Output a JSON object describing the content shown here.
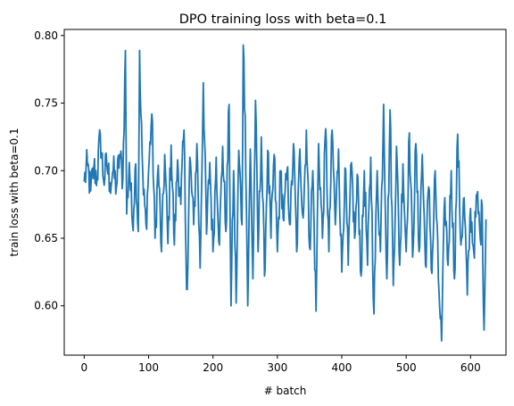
{
  "chart_data": {
    "type": "line",
    "title": "DPO training loss with beta=0.1",
    "xlabel": "# batch",
    "ylabel": "train loss with beta=0.1",
    "xlim": [
      -31,
      655
    ],
    "ylim": [
      0.5635,
      0.8045
    ],
    "xticks": [
      0,
      100,
      200,
      300,
      400,
      500,
      600
    ],
    "xtick_labels": [
      "0",
      "100",
      "200",
      "300",
      "400",
      "500",
      "600"
    ],
    "yticks": [
      0.6,
      0.65,
      0.7,
      0.75,
      0.8
    ],
    "ytick_labels": [
      "0.60",
      "0.65",
      "0.70",
      "0.75",
      "0.80"
    ],
    "grid": false,
    "series": [
      {
        "color": "#1f77b4",
        "anchors": [
          [
            0,
            0.692
          ],
          [
            5,
            0.704
          ],
          [
            10,
            0.685
          ],
          [
            15,
            0.702
          ],
          [
            20,
            0.695
          ],
          [
            25,
            0.727
          ],
          [
            30,
            0.693
          ],
          [
            35,
            0.705
          ],
          [
            40,
            0.691
          ],
          [
            45,
            0.7
          ],
          [
            50,
            0.688
          ],
          [
            55,
            0.712
          ],
          [
            60,
            0.694
          ],
          [
            64,
            0.789
          ],
          [
            66,
            0.668
          ],
          [
            70,
            0.706
          ],
          [
            75,
            0.66
          ],
          [
            80,
            0.705
          ],
          [
            84,
            0.655
          ],
          [
            86,
            0.789
          ],
          [
            88,
            0.742
          ],
          [
            92,
            0.682
          ],
          [
            96,
            0.66
          ],
          [
            100,
            0.7
          ],
          [
            105,
            0.742
          ],
          [
            110,
            0.65
          ],
          [
            115,
            0.704
          ],
          [
            120,
            0.64
          ],
          [
            125,
            0.712
          ],
          [
            130,
            0.646
          ],
          [
            135,
            0.719
          ],
          [
            140,
            0.645
          ],
          [
            145,
            0.708
          ],
          [
            150,
            0.675
          ],
          [
            155,
            0.73
          ],
          [
            158,
            0.64
          ],
          [
            160,
            0.612
          ],
          [
            164,
            0.71
          ],
          [
            170,
            0.66
          ],
          [
            175,
            0.72
          ],
          [
            180,
            0.628
          ],
          [
            185,
            0.765
          ],
          [
            190,
            0.653
          ],
          [
            195,
            0.706
          ],
          [
            200,
            0.64
          ],
          [
            205,
            0.71
          ],
          [
            210,
            0.645
          ],
          [
            215,
            0.718
          ],
          [
            220,
            0.655
          ],
          [
            225,
            0.749
          ],
          [
            228,
            0.6
          ],
          [
            232,
            0.7
          ],
          [
            236,
            0.602
          ],
          [
            240,
            0.715
          ],
          [
            245,
            0.66
          ],
          [
            247,
            0.793
          ],
          [
            250,
            0.741
          ],
          [
            254,
            0.6
          ],
          [
            258,
            0.716
          ],
          [
            262,
            0.62
          ],
          [
            266,
            0.752
          ],
          [
            270,
            0.64
          ],
          [
            275,
            0.725
          ],
          [
            280,
            0.622
          ],
          [
            285,
            0.715
          ],
          [
            290,
            0.65
          ],
          [
            295,
            0.712
          ],
          [
            300,
            0.64
          ],
          [
            305,
            0.7
          ],
          [
            310,
            0.663
          ],
          [
            315,
            0.7
          ],
          [
            320,
            0.66
          ],
          [
            325,
            0.72
          ],
          [
            330,
            0.64
          ],
          [
            335,
            0.716
          ],
          [
            340,
            0.665
          ],
          [
            345,
            0.73
          ],
          [
            350,
            0.643
          ],
          [
            355,
            0.7
          ],
          [
            360,
            0.596
          ],
          [
            364,
            0.72
          ],
          [
            370,
            0.65
          ],
          [
            375,
            0.731
          ],
          [
            380,
            0.64
          ],
          [
            385,
            0.73
          ],
          [
            390,
            0.66
          ],
          [
            395,
            0.716
          ],
          [
            400,
            0.625
          ],
          [
            405,
            0.702
          ],
          [
            410,
            0.63
          ],
          [
            415,
            0.706
          ],
          [
            420,
            0.65
          ],
          [
            425,
            0.695
          ],
          [
            430,
            0.622
          ],
          [
            435,
            0.7
          ],
          [
            440,
            0.63
          ],
          [
            445,
            0.71
          ],
          [
            450,
            0.594
          ],
          [
            455,
            0.7
          ],
          [
            460,
            0.64
          ],
          [
            465,
            0.749
          ],
          [
            470,
            0.62
          ],
          [
            475,
            0.745
          ],
          [
            480,
            0.615
          ],
          [
            485,
            0.718
          ],
          [
            490,
            0.63
          ],
          [
            495,
            0.705
          ],
          [
            500,
            0.64
          ],
          [
            505,
            0.728
          ],
          [
            510,
            0.636
          ],
          [
            515,
            0.72
          ],
          [
            520,
            0.64
          ],
          [
            525,
            0.712
          ],
          [
            530,
            0.63
          ],
          [
            535,
            0.688
          ],
          [
            540,
            0.624
          ],
          [
            545,
            0.7
          ],
          [
            550,
            0.62
          ],
          [
            555,
            0.574
          ],
          [
            560,
            0.68
          ],
          [
            565,
            0.63
          ],
          [
            570,
            0.7
          ],
          [
            575,
            0.62
          ],
          [
            580,
            0.727
          ],
          [
            585,
            0.645
          ],
          [
            590,
            0.68
          ],
          [
            595,
            0.608
          ],
          [
            600,
            0.672
          ],
          [
            605,
            0.64
          ],
          [
            610,
            0.682
          ],
          [
            615,
            0.65
          ],
          [
            618,
            0.674
          ],
          [
            621,
            0.582
          ],
          [
            624,
            0.664
          ]
        ]
      }
    ]
  }
}
